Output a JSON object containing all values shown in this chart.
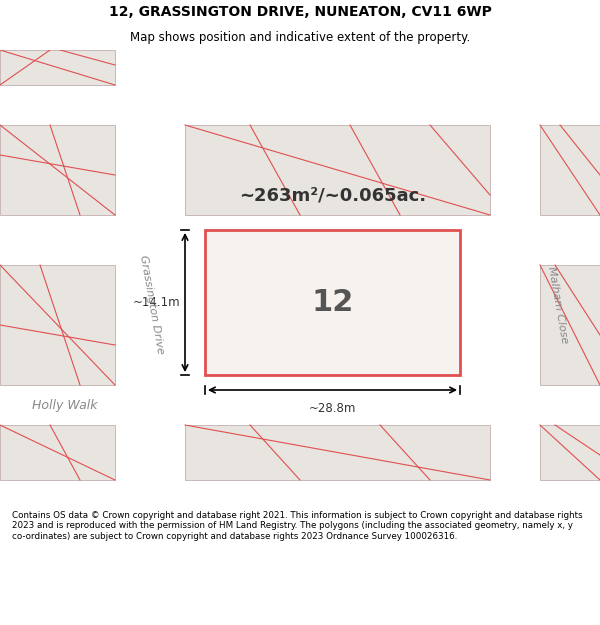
{
  "title_line1": "12, GRASSINGTON DRIVE, NUNEATON, CV11 6WP",
  "title_line2": "Map shows position and indicative extent of the property.",
  "footer_text": "Contains OS data © Crown copyright and database right 2021. This information is subject to Crown copyright and database rights 2023 and is reproduced with the permission of HM Land Registry. The polygons (including the associated geometry, namely x, y co-ordinates) are subject to Crown copyright and database rights 2023 Ordnance Survey 100026316.",
  "area_label": "~263m²/~0.065ac.",
  "property_number": "12",
  "dim_width": "~28.8m",
  "dim_height": "~14.1m",
  "road_label_1": "Holly Walk",
  "road_label_2": "Grassington Drive",
  "road_label_3": "Malham Close",
  "bg_color": "#f0ede8",
  "map_bg": "#f0ede8",
  "block_fill": "#e8e4df",
  "block_stroke": "#c8b8b8",
  "highlight_fill": "#f5f0ec",
  "highlight_stroke": "#e05050",
  "title_bg": "#ffffff",
  "footer_bg": "#ffffff",
  "road_color": "#ffffff"
}
